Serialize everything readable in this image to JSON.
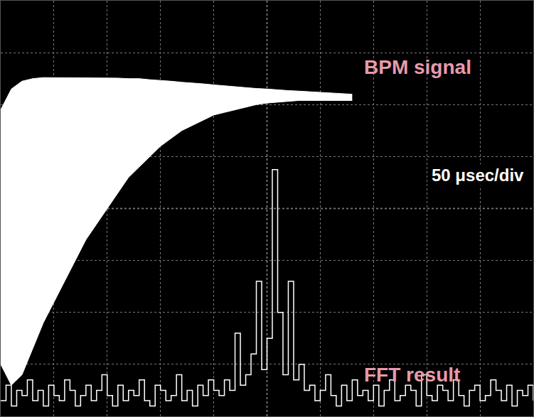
{
  "chart_data": {
    "type": "line",
    "annotations": [
      "50 μsec/div"
    ],
    "xlim": [
      0,
      500
    ],
    "xticks": [
      0,
      50,
      100,
      150,
      200,
      250,
      300,
      350,
      400,
      450,
      500
    ],
    "ylim": [
      0,
      8
    ],
    "yticks": [
      0,
      1,
      2,
      3,
      4,
      5,
      6,
      7,
      8
    ],
    "grid": true,
    "tick_labels": false,
    "series": [
      {
        "name": "BPM signal",
        "type": "area",
        "color": "#ffffff",
        "x": [
          0,
          10,
          20,
          30,
          40,
          50,
          60,
          70,
          80,
          90,
          100,
          110,
          120,
          130,
          140,
          150,
          160,
          170,
          180,
          190,
          200,
          210,
          220,
          230,
          240,
          250,
          260,
          270,
          280,
          290,
          300,
          310,
          320,
          330
        ],
        "values": [
          5.9,
          6.3,
          6.45,
          6.5,
          6.52,
          6.52,
          6.52,
          6.52,
          6.52,
          6.52,
          6.52,
          6.51,
          6.5,
          6.5,
          6.48,
          6.47,
          6.45,
          6.43,
          6.42,
          6.4,
          6.38,
          6.36,
          6.34,
          6.33,
          6.31,
          6.3,
          6.28,
          6.27,
          6.26,
          6.25,
          6.23,
          6.22,
          6.21,
          6.2
        ],
        "low": [
          1.0,
          0.6,
          0.8,
          1.3,
          1.8,
          2.2,
          2.6,
          3.0,
          3.4,
          3.7,
          4.0,
          4.3,
          4.6,
          4.8,
          5.0,
          5.2,
          5.35,
          5.5,
          5.6,
          5.7,
          5.8,
          5.85,
          5.9,
          5.95,
          6.0,
          6.03,
          6.05,
          6.07,
          6.08,
          6.08,
          6.08,
          6.08,
          6.08,
          6.08
        ]
      },
      {
        "name": "FFT result",
        "type": "line",
        "color": "#ffffff",
        "x": [
          0,
          5,
          10,
          15,
          20,
          25,
          30,
          35,
          40,
          45,
          50,
          55,
          60,
          65,
          70,
          75,
          80,
          85,
          90,
          95,
          100,
          105,
          110,
          115,
          120,
          125,
          130,
          135,
          140,
          145,
          150,
          155,
          160,
          165,
          170,
          175,
          180,
          185,
          190,
          195,
          200,
          205,
          210,
          215,
          220,
          225,
          230,
          235,
          240,
          245,
          250,
          255,
          260,
          265,
          270,
          275,
          280,
          285,
          290,
          295,
          300,
          305,
          310,
          315,
          320,
          325,
          330,
          335,
          340,
          345,
          350,
          355,
          360,
          365,
          370,
          375,
          380,
          385,
          390,
          395,
          400,
          405,
          410,
          415,
          420,
          425,
          430,
          435,
          440,
          445,
          450,
          455,
          460,
          465,
          470,
          475,
          480,
          485,
          490,
          495,
          500
        ],
        "values": [
          0.3,
          0.6,
          0.2,
          0.5,
          0.4,
          0.7,
          0.3,
          0.5,
          0.2,
          0.6,
          0.4,
          0.3,
          0.7,
          0.5,
          0.2,
          0.4,
          0.6,
          0.3,
          0.5,
          0.8,
          0.4,
          0.2,
          0.6,
          0.3,
          0.5,
          0.4,
          0.7,
          0.3,
          0.2,
          0.6,
          0.5,
          0.3,
          0.4,
          0.8,
          0.3,
          0.5,
          0.2,
          0.6,
          0.4,
          0.7,
          0.5,
          0.4,
          0.7,
          0.5,
          1.6,
          0.6,
          0.8,
          1.2,
          2.6,
          0.9,
          1.5,
          4.75,
          2.0,
          0.8,
          2.6,
          0.7,
          1.0,
          0.5,
          0.6,
          0.3,
          0.5,
          0.8,
          0.4,
          0.2,
          0.6,
          0.3,
          0.7,
          0.4,
          0.5,
          0.3,
          0.6,
          0.2,
          0.5,
          0.7,
          0.3,
          0.4,
          0.6,
          0.5,
          0.2,
          0.8,
          0.4,
          0.3,
          0.6,
          0.5,
          0.3,
          0.7,
          0.4,
          0.2,
          0.5,
          0.6,
          0.3,
          0.4,
          0.7,
          0.5,
          0.3,
          0.6,
          0.2,
          0.5,
          0.4,
          0.6,
          0.3
        ]
      }
    ]
  }
}
